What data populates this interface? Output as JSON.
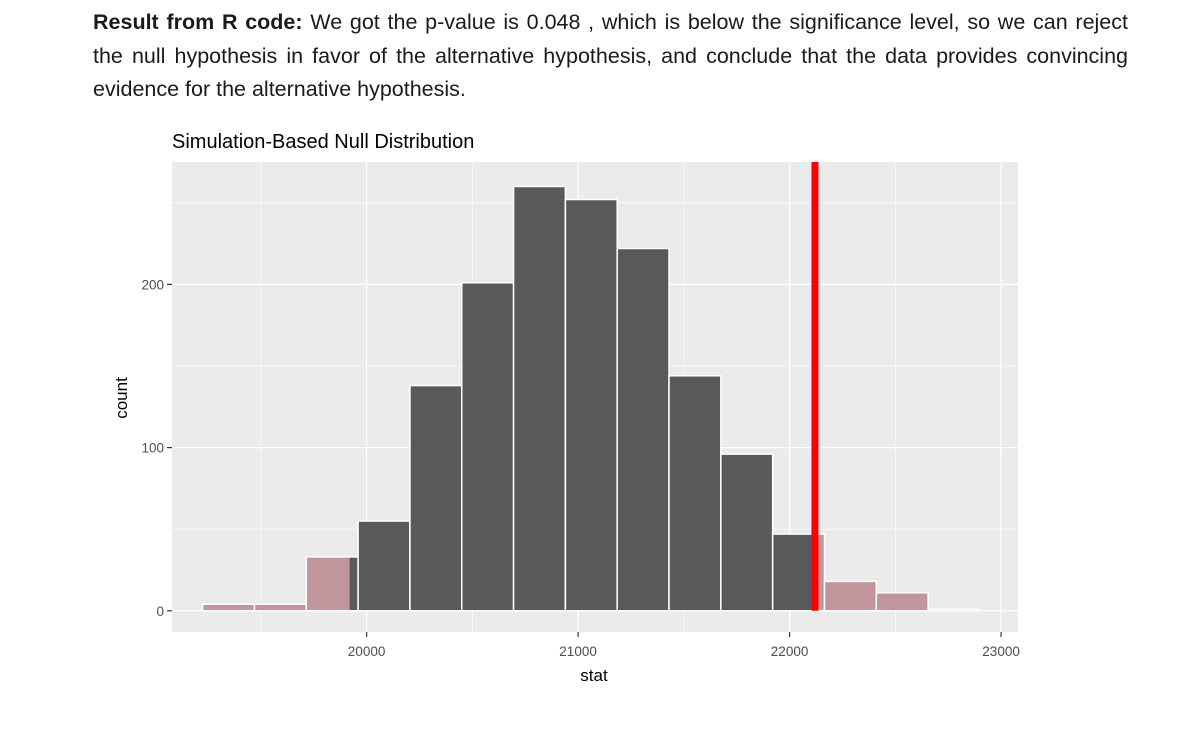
{
  "document": {
    "result_label": "Result from R code:",
    "result_text": " We got the p-value is 0.048 , which is below the significance level, so we can reject the null hypothesis in favor of the alternative hypothesis, and conclude that the data provides convincing evidence for the alternative hypothesis."
  },
  "chart_data": {
    "type": "bar",
    "title": "Simulation-Based Null Distribution",
    "xlabel": "stat",
    "ylabel": "count",
    "xlim": [
      19080,
      23080
    ],
    "ylim": [
      -13,
      275
    ],
    "x_ticks": [
      20000,
      21000,
      22000,
      23000
    ],
    "y_ticks": [
      0,
      100,
      200
    ],
    "bin_width": 245,
    "bins": [
      {
        "start": 19225,
        "count": 4,
        "shaded": true
      },
      {
        "start": 19470,
        "count": 4,
        "shaded": true
      },
      {
        "start": 19715,
        "count": 33,
        "shaded": true,
        "partial_shade_until": 19920
      },
      {
        "start": 19960,
        "count": 55,
        "shaded": false
      },
      {
        "start": 20205,
        "count": 138,
        "shaded": false
      },
      {
        "start": 20450,
        "count": 201,
        "shaded": false
      },
      {
        "start": 20695,
        "count": 260,
        "shaded": false
      },
      {
        "start": 20940,
        "count": 252,
        "shaded": false
      },
      {
        "start": 21185,
        "count": 222,
        "shaded": false
      },
      {
        "start": 21430,
        "count": 144,
        "shaded": false
      },
      {
        "start": 21675,
        "count": 96,
        "shaded": false
      },
      {
        "start": 21920,
        "count": 47,
        "shaded": false,
        "partial_shade_from": 22120
      },
      {
        "start": 22165,
        "count": 18,
        "shaded": true
      },
      {
        "start": 22410,
        "count": 11,
        "shaded": true
      },
      {
        "start": 22655,
        "count": 1,
        "shaded": true
      }
    ],
    "observed_stat": 22120,
    "grid": true,
    "colors": {
      "panel": "#ebebeb",
      "grid": "#ffffff",
      "bar": "#595959",
      "shaded_bar": "#c0959b",
      "observed_line": "#ff0000",
      "axis_text": "#4d4d4d"
    }
  }
}
